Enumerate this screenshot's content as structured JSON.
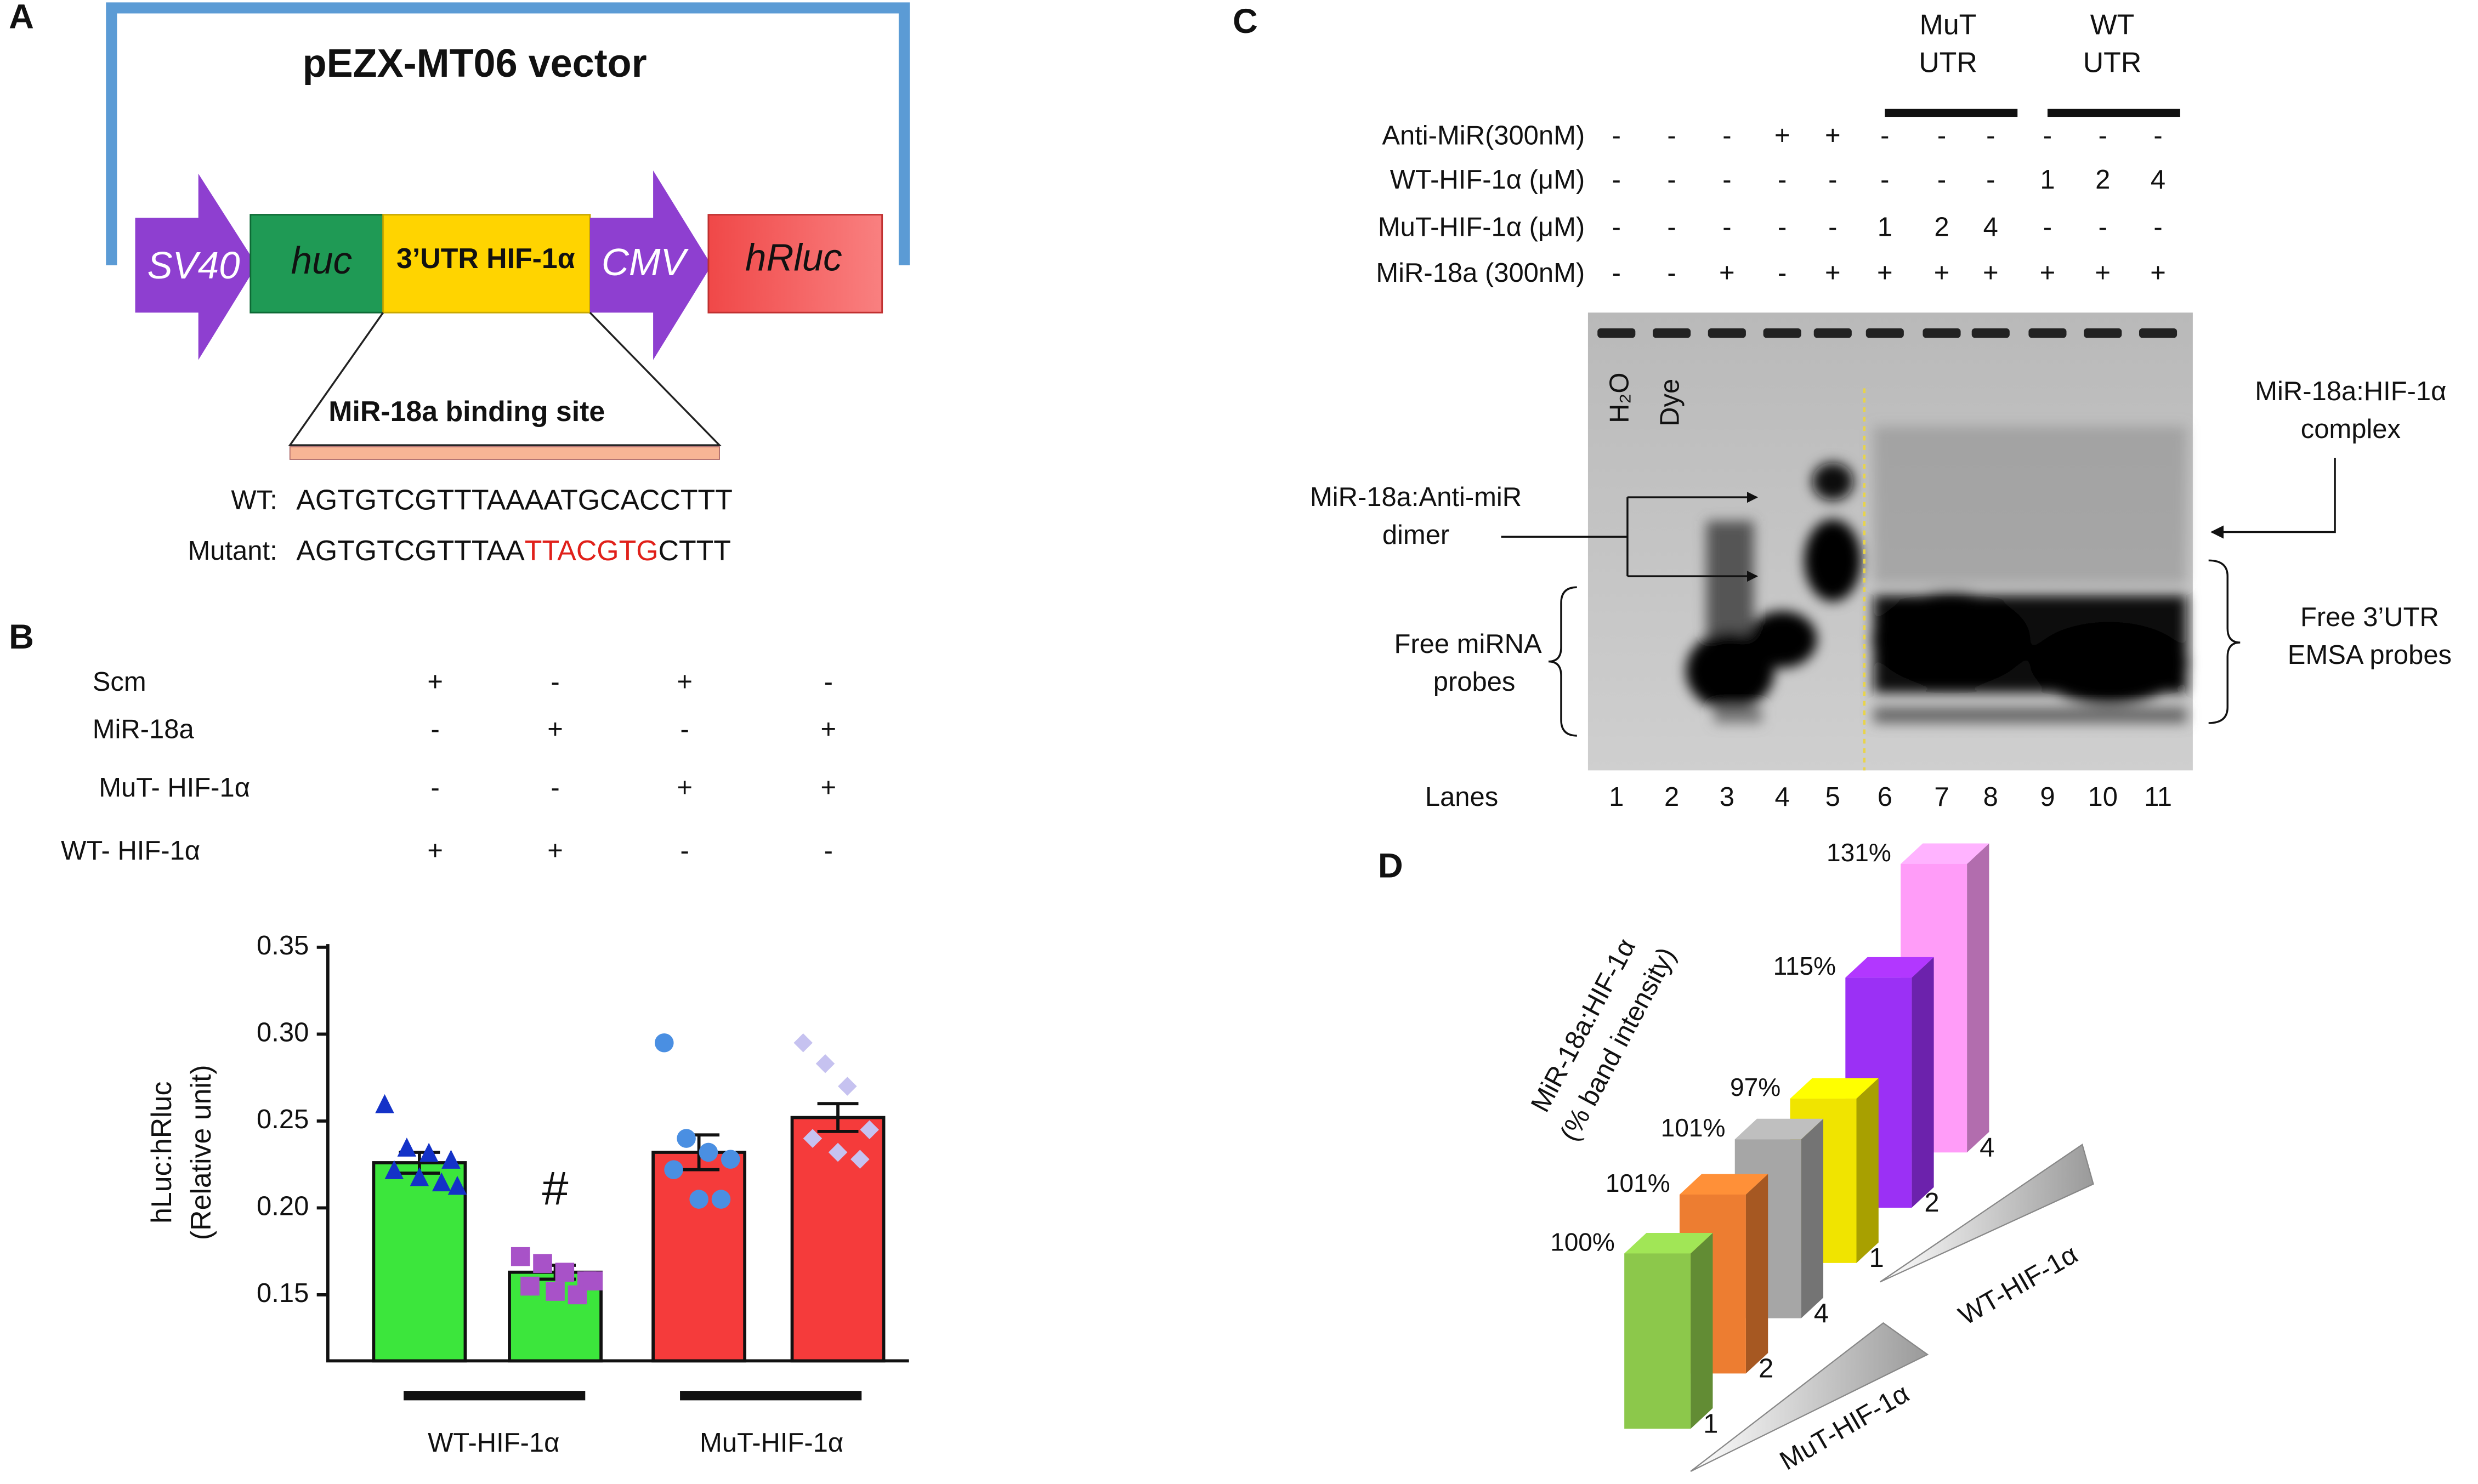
{
  "panel_a": {
    "label": "A",
    "title": "pEZX-MT06 vector",
    "elements": [
      "SV40",
      "huc",
      "3’UTR HIF-1α",
      "CMV",
      "hRluc"
    ],
    "binding_site": "MiR-18a binding site",
    "sequences": [
      {
        "label": "WT:",
        "parts": [
          "AGTGTCGTTTAAAATGCACCTTT"
        ]
      },
      {
        "label": "Mutant:",
        "parts": [
          "AGTGTCGTTTAA",
          "TTACGTG",
          "CTTT"
        ]
      }
    ]
  },
  "panel_b": {
    "label": "B",
    "conditions": [
      {
        "name": "Scm",
        "signs": [
          "+",
          "-",
          "+",
          "-"
        ]
      },
      {
        "name": "MiR-18a",
        "signs": [
          "-",
          "+",
          "-",
          "+"
        ]
      },
      {
        "name": "MuT- HIF-1α",
        "signs": [
          "-",
          "-",
          "+",
          "+"
        ]
      },
      {
        "name": "WT-  HIF-1α",
        "signs": [
          "+",
          "+",
          "-",
          "-"
        ]
      }
    ]
  },
  "panel_c": {
    "label": "C",
    "groups": [
      [
        "MuT",
        "UTR"
      ],
      [
        "WT",
        "UTR"
      ]
    ],
    "conditions": [
      {
        "name": "Anti-MiR(300nM)",
        "signs": [
          "-",
          "-",
          "-",
          "+",
          "+",
          "-",
          "-",
          "-",
          "-",
          "-",
          "-"
        ]
      },
      {
        "name": "WT-HIF-1α (μM)",
        "signs": [
          "-",
          "-",
          "-",
          "-",
          "-",
          "-",
          "-",
          "-",
          "1",
          "2",
          "4"
        ]
      },
      {
        "name": "MuT-HIF-1α (μM)",
        "signs": [
          "-",
          "-",
          "-",
          "-",
          "-",
          "1",
          "2",
          "4",
          "-",
          "-",
          "-"
        ]
      },
      {
        "name": "MiR-18a (300nM)",
        "signs": [
          "-",
          "-",
          "+",
          "-",
          "+",
          "+",
          "+",
          "+",
          "+",
          "+",
          "+"
        ]
      }
    ],
    "gel_labels": [
      "H₂O",
      "Dye"
    ],
    "annotations": {
      "dimer": [
        "MiR-18a:Anti-miR",
        "dimer"
      ],
      "free_mirna": [
        "Free miRNA",
        "probes"
      ],
      "complex": [
        "MiR-18a:HIF-1α",
        "complex"
      ],
      "free_utr": [
        "Free 3’UTR",
        "EMSA probes"
      ]
    },
    "lanes_title": "Lanes",
    "lanes": [
      1,
      2,
      3,
      4,
      5,
      6,
      7,
      8,
      9,
      10,
      11
    ]
  },
  "panel_d": {
    "label": "D"
  },
  "chart_data": [
    {
      "type": "bar",
      "y_label": [
        "hLuc:hRluc",
        "(Relative unit)"
      ],
      "categories": [
        null,
        null,
        null,
        null
      ],
      "values": [
        0.226,
        0.163,
        0.232,
        0.252
      ],
      "errors": [
        0.006,
        0.004,
        0.01,
        0.008
      ],
      "colors": [
        "#3ce63c",
        "#3ce63c",
        "#f53b3b",
        "#f53b3b"
      ],
      "points": [
        [
          0.26,
          0.235,
          0.232,
          0.228,
          0.222,
          0.218,
          0.215,
          0.213
        ],
        [
          0.172,
          0.168,
          0.163,
          0.158,
          0.155,
          0.152,
          0.15,
          0.158
        ],
        [
          0.295,
          0.24,
          0.232,
          0.228,
          0.222,
          0.205,
          0.205
        ],
        [
          0.295,
          0.283,
          0.27,
          0.245,
          0.24,
          0.232,
          0.228
        ]
      ],
      "point_colors": [
        "#1432c8",
        "#a852c8",
        "#4a8fe2",
        "#c6c2f0"
      ],
      "markers": [
        "triangle",
        "square",
        "circle",
        "diamond"
      ],
      "ylim": [
        0.112,
        0.35
      ],
      "yticks": [
        0.15,
        {
          "value": 0.2,
          "label": "0.20"
        },
        0.25,
        {
          "value": 0.3,
          "label": "0.30"
        },
        0.35
      ],
      "annotation": "#",
      "groups": [
        "WT-HIF-1α",
        "MuT-HIF-1α"
      ]
    },
    {
      "type": "bar3d",
      "y_label": [
        "MiR-18a:HIF-1α",
        "(% band intensity)"
      ],
      "categories": [
        "1",
        "2",
        "4",
        "1",
        "2",
        "4"
      ],
      "values": [
        100,
        101,
        101,
        97,
        115,
        131
      ],
      "value_labels": [
        "100%",
        "101%",
        "101%",
        "97%",
        "115%",
        "131%"
      ],
      "colors": [
        "#8cc84b",
        "#ed7d31",
        "#a6a6a6",
        "#f0e400",
        "#9b30f5",
        "#ff9cf8"
      ],
      "groups": [
        "MuT-HIF-1α",
        "WT-HIF-1α"
      ],
      "ylim": [
        52,
        135
      ]
    }
  ]
}
